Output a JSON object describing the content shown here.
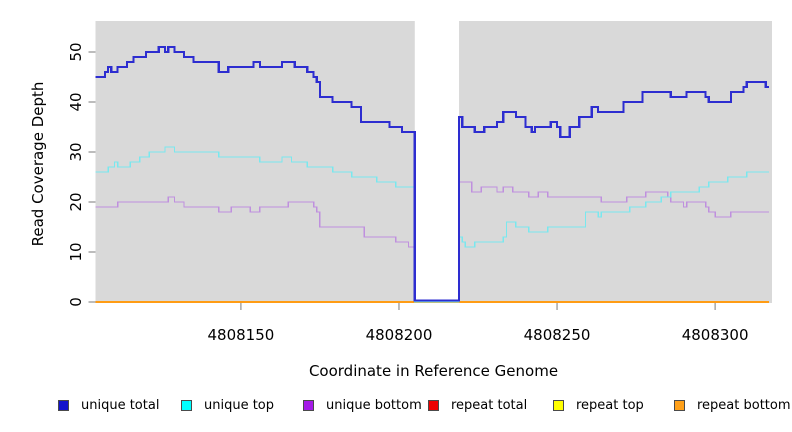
{
  "figure": {
    "kind": "read-coverage-step-plot"
  },
  "chart_data": {
    "type": "line",
    "subtype": "step",
    "title": "",
    "xlabel": "Coordinate in Reference Genome",
    "ylabel": "Read Coverage Depth",
    "xlim": [
      4808104,
      4808318
    ],
    "ylim": [
      0,
      56
    ],
    "x_ticks": [
      4808150,
      4808200,
      4808250,
      4808300
    ],
    "y_ticks": [
      0,
      10,
      20,
      30,
      40,
      50
    ],
    "grid": "off",
    "panel_background": "#d9d9d9",
    "tick_color": "#7a7a7a",
    "gap_region": {
      "x_start": 4808205,
      "x_end": 4808219,
      "fill": "#ffffff",
      "note": "no-data white band, lines drop to 0"
    },
    "legend_position": "bottom",
    "series": [
      {
        "name": "unique total",
        "legend_color": "#1212cc",
        "line_color": "#2d2dd0",
        "line_width": 2.2,
        "steps": [
          [
            4808104,
            45
          ],
          [
            4808107,
            46
          ],
          [
            4808108,
            47
          ],
          [
            4808109,
            46
          ],
          [
            4808111,
            47
          ],
          [
            4808114,
            48
          ],
          [
            4808116,
            49
          ],
          [
            4808120,
            50
          ],
          [
            4808124,
            51
          ],
          [
            4808126,
            50
          ],
          [
            4808127,
            51
          ],
          [
            4808129,
            50
          ],
          [
            4808132,
            49
          ],
          [
            4808135,
            48
          ],
          [
            4808143,
            46
          ],
          [
            4808146,
            47
          ],
          [
            4808154,
            48
          ],
          [
            4808156,
            47
          ],
          [
            4808163,
            48
          ],
          [
            4808167,
            47
          ],
          [
            4808171,
            46
          ],
          [
            4808173,
            45
          ],
          [
            4808174,
            44
          ],
          [
            4808175,
            41
          ],
          [
            4808179,
            40
          ],
          [
            4808185,
            39
          ],
          [
            4808188,
            36
          ],
          [
            4808197,
            35
          ],
          [
            4808201,
            34
          ],
          [
            4808205,
            0
          ],
          [
            4808219,
            37
          ],
          [
            4808220,
            35
          ],
          [
            4808224,
            34
          ],
          [
            4808227,
            35
          ],
          [
            4808231,
            36
          ],
          [
            4808233,
            38
          ],
          [
            4808237,
            37
          ],
          [
            4808240,
            35
          ],
          [
            4808242,
            34
          ],
          [
            4808243,
            35
          ],
          [
            4808248,
            36
          ],
          [
            4808250,
            35
          ],
          [
            4808251,
            33
          ],
          [
            4808254,
            35
          ],
          [
            4808257,
            37
          ],
          [
            4808261,
            39
          ],
          [
            4808263,
            38
          ],
          [
            4808271,
            40
          ],
          [
            4808277,
            42
          ],
          [
            4808286,
            41
          ],
          [
            4808291,
            42
          ],
          [
            4808297,
            41
          ],
          [
            4808298,
            40
          ],
          [
            4808305,
            42
          ],
          [
            4808309,
            43
          ],
          [
            4808310,
            44
          ],
          [
            4808316,
            43
          ]
        ]
      },
      {
        "name": "unique top",
        "legend_color": "#00ffff",
        "line_color": "#79e8ee",
        "line_width": 1.4,
        "steps": [
          [
            4808104,
            26
          ],
          [
            4808108,
            27
          ],
          [
            4808110,
            28
          ],
          [
            4808111,
            27
          ],
          [
            4808115,
            28
          ],
          [
            4808118,
            29
          ],
          [
            4808121,
            30
          ],
          [
            4808126,
            31
          ],
          [
            4808129,
            30
          ],
          [
            4808143,
            29
          ],
          [
            4808156,
            28
          ],
          [
            4808163,
            29
          ],
          [
            4808166,
            28
          ],
          [
            4808171,
            27
          ],
          [
            4808179,
            26
          ],
          [
            4808185,
            25
          ],
          [
            4808193,
            24
          ],
          [
            4808199,
            23
          ],
          [
            4808205,
            0
          ],
          [
            4808219,
            13
          ],
          [
            4808220,
            12
          ],
          [
            4808221,
            11
          ],
          [
            4808224,
            12
          ],
          [
            4808233,
            13
          ],
          [
            4808234,
            16
          ],
          [
            4808237,
            15
          ],
          [
            4808241,
            14
          ],
          [
            4808247,
            15
          ],
          [
            4808259,
            18
          ],
          [
            4808263,
            17
          ],
          [
            4808264,
            18
          ],
          [
            4808273,
            19
          ],
          [
            4808278,
            20
          ],
          [
            4808283,
            21
          ],
          [
            4808286,
            22
          ],
          [
            4808295,
            23
          ],
          [
            4808298,
            24
          ],
          [
            4808304,
            25
          ],
          [
            4808310,
            26
          ]
        ]
      },
      {
        "name": "unique bottom",
        "legend_color": "#a51ae8",
        "line_color": "#bf90de",
        "line_width": 1.4,
        "steps": [
          [
            4808104,
            19
          ],
          [
            4808111,
            20
          ],
          [
            4808127,
            21
          ],
          [
            4808129,
            20
          ],
          [
            4808132,
            19
          ],
          [
            4808143,
            18
          ],
          [
            4808147,
            19
          ],
          [
            4808153,
            18
          ],
          [
            4808156,
            19
          ],
          [
            4808165,
            20
          ],
          [
            4808173,
            19
          ],
          [
            4808174,
            18
          ],
          [
            4808175,
            15
          ],
          [
            4808189,
            13
          ],
          [
            4808199,
            12
          ],
          [
            4808203,
            11
          ],
          [
            4808205,
            0
          ],
          [
            4808219,
            24
          ],
          [
            4808223,
            22
          ],
          [
            4808226,
            23
          ],
          [
            4808231,
            22
          ],
          [
            4808233,
            23
          ],
          [
            4808236,
            22
          ],
          [
            4808241,
            21
          ],
          [
            4808244,
            22
          ],
          [
            4808247,
            21
          ],
          [
            4808264,
            20
          ],
          [
            4808272,
            21
          ],
          [
            4808278,
            22
          ],
          [
            4808285,
            21
          ],
          [
            4808286,
            20
          ],
          [
            4808290,
            19
          ],
          [
            4808291,
            20
          ],
          [
            4808297,
            19
          ],
          [
            4808298,
            18
          ],
          [
            4808300,
            17
          ],
          [
            4808305,
            18
          ]
        ]
      },
      {
        "name": "repeat total",
        "legend_color": "#ee0000",
        "line_color": "#ee0000",
        "line_width": 1.4,
        "steps": [
          [
            4808104,
            0
          ]
        ]
      },
      {
        "name": "repeat top",
        "legend_color": "#ffff00",
        "line_color": "#ffff00",
        "line_width": 1.4,
        "steps": [
          [
            4808104,
            0
          ]
        ]
      },
      {
        "name": "repeat bottom",
        "legend_color": "#ffa019",
        "line_color": "#ff9c14",
        "line_width": 1.6,
        "steps": [
          [
            4808104,
            0
          ]
        ]
      }
    ],
    "draw_order": [
      3,
      4,
      5,
      2,
      1,
      0
    ]
  }
}
